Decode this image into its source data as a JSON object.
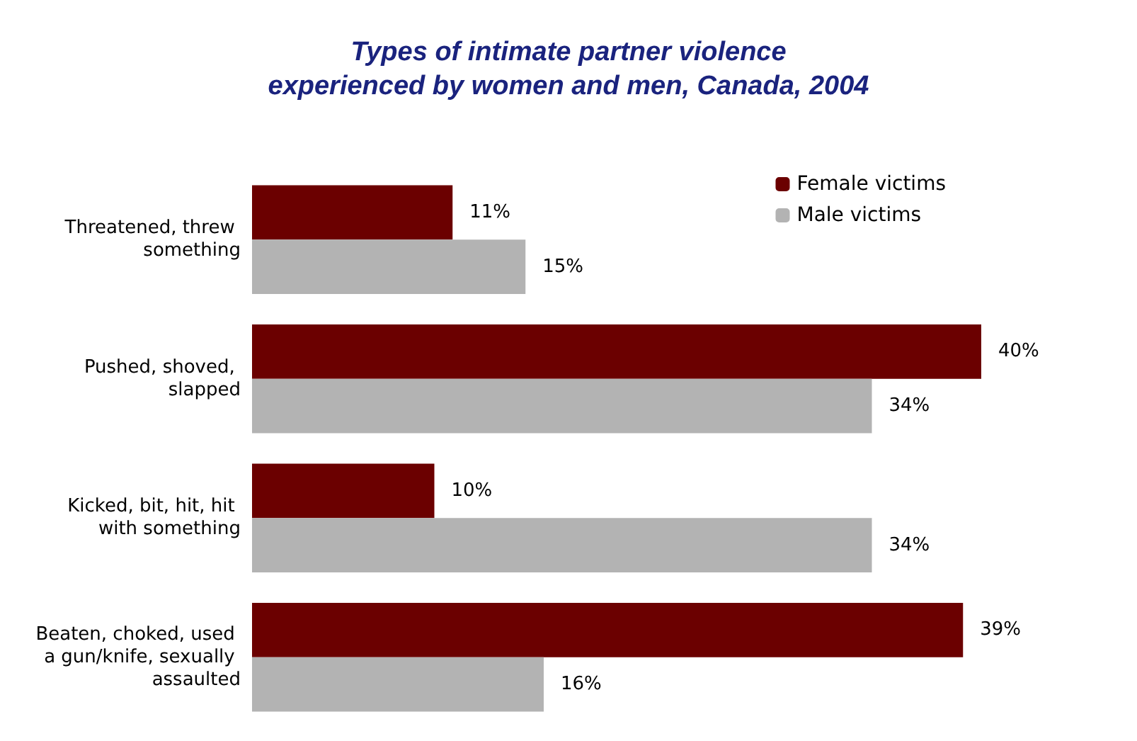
{
  "chart_data": {
    "type": "bar",
    "orientation": "horizontal",
    "title": "Types of intimate partner violence\nexperienced by women and men, Canada, 2004",
    "categories": [
      "Threatened, threw something",
      "Pushed, shoved, slapped",
      "Kicked, bit, hit, hit with something",
      "Beaten, choked, used a gun/knife, sexually assaulted"
    ],
    "series": [
      {
        "name": "Female victims",
        "color": "#6b0000",
        "values": [
          11,
          40,
          10,
          39
        ],
        "value_labels": [
          "11%",
          "40%",
          "10%",
          "39%"
        ]
      },
      {
        "name": "Male victims",
        "color": "#b3b3b3",
        "values": [
          15,
          34,
          34,
          16
        ],
        "value_labels": [
          "15%",
          "34%",
          "34%",
          "16%"
        ]
      }
    ],
    "legend": "top right"
  }
}
